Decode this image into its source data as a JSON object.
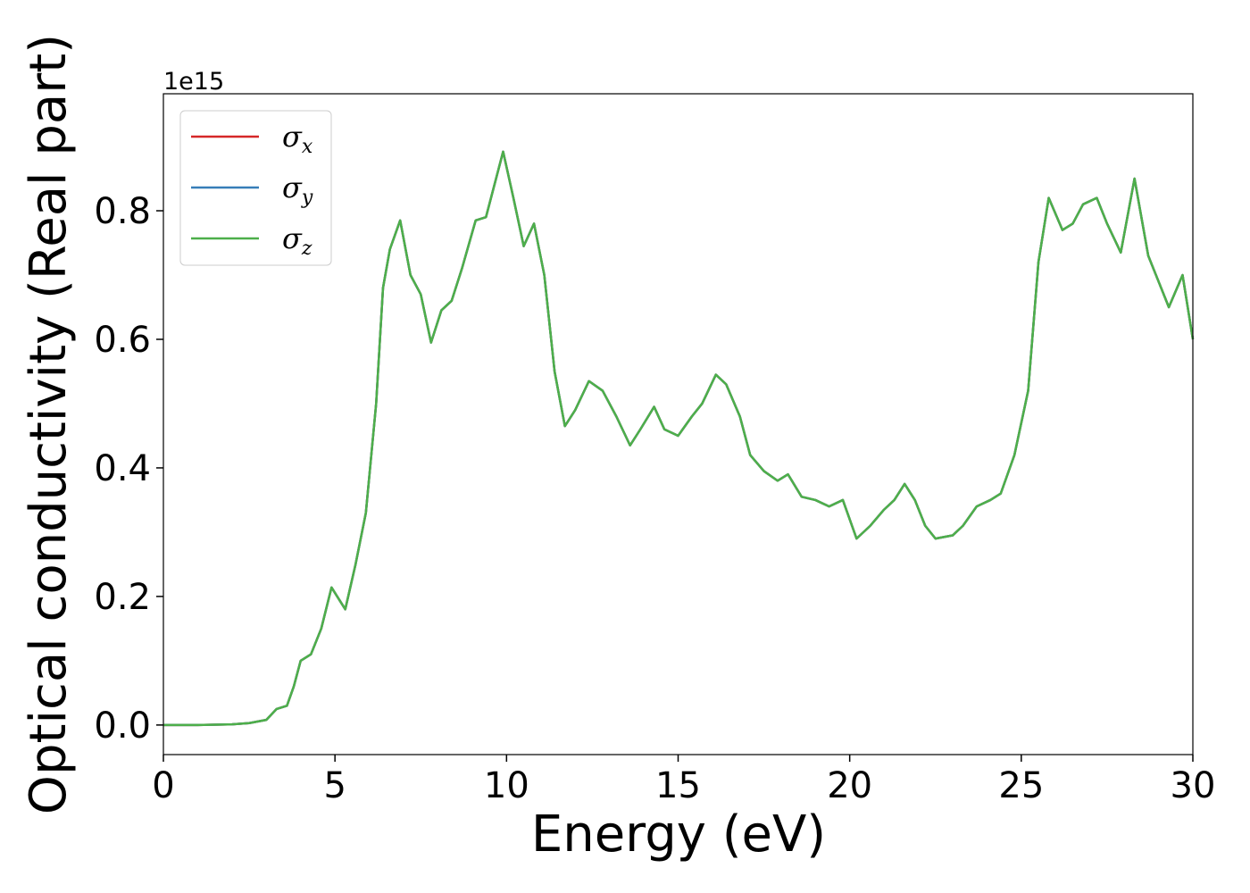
{
  "chart_data": {
    "type": "line",
    "x_label": "Energy (eV)",
    "y_label": "Optical conductivity (Real part)",
    "y_offset_label": "1e15",
    "x": [
      0,
      1,
      2,
      2.5,
      3,
      3.3,
      3.6,
      3.8,
      4.0,
      4.3,
      4.6,
      4.9,
      5.3,
      5.6,
      5.9,
      6.2,
      6.4,
      6.6,
      6.9,
      7.2,
      7.5,
      7.8,
      8.1,
      8.4,
      8.7,
      9.1,
      9.4,
      9.9,
      10.2,
      10.5,
      10.8,
      11.1,
      11.4,
      11.7,
      12.0,
      12.4,
      12.8,
      13.2,
      13.6,
      13.9,
      14.3,
      14.6,
      15.0,
      15.4,
      15.7,
      16.1,
      16.4,
      16.8,
      17.1,
      17.5,
      17.9,
      18.2,
      18.6,
      19.0,
      19.4,
      19.8,
      20.2,
      20.6,
      21.0,
      21.3,
      21.6,
      21.9,
      22.2,
      22.5,
      23.0,
      23.3,
      23.7,
      24.1,
      24.4,
      24.8,
      25.2,
      25.5,
      25.8,
      26.2,
      26.5,
      26.8,
      27.2,
      27.5,
      27.9,
      28.3,
      28.7,
      29.0,
      29.3,
      29.7,
      30.0
    ],
    "series": [
      {
        "name": "σx",
        "color": "#d62728",
        "values": [
          0,
          0,
          0.001,
          0.003,
          0.008,
          0.025,
          0.03,
          0.06,
          0.1,
          0.11,
          0.15,
          0.214,
          0.18,
          0.25,
          0.33,
          0.5,
          0.68,
          0.74,
          0.785,
          0.7,
          0.67,
          0.595,
          0.645,
          0.66,
          0.71,
          0.785,
          0.79,
          0.892,
          0.82,
          0.745,
          0.78,
          0.7,
          0.55,
          0.465,
          0.49,
          0.535,
          0.52,
          0.48,
          0.435,
          0.46,
          0.495,
          0.46,
          0.45,
          0.48,
          0.5,
          0.545,
          0.53,
          0.48,
          0.42,
          0.395,
          0.38,
          0.39,
          0.355,
          0.35,
          0.34,
          0.35,
          0.29,
          0.31,
          0.335,
          0.35,
          0.375,
          0.35,
          0.31,
          0.29,
          0.295,
          0.31,
          0.34,
          0.35,
          0.36,
          0.42,
          0.52,
          0.72,
          0.82,
          0.77,
          0.78,
          0.81,
          0.82,
          0.78,
          0.735,
          0.85,
          0.73,
          0.69,
          0.65,
          0.7,
          0.6
        ]
      },
      {
        "name": "σy",
        "color": "#377eb8",
        "values": [
          0,
          0,
          0.001,
          0.003,
          0.008,
          0.025,
          0.03,
          0.06,
          0.1,
          0.11,
          0.15,
          0.214,
          0.18,
          0.25,
          0.33,
          0.5,
          0.68,
          0.74,
          0.785,
          0.7,
          0.67,
          0.595,
          0.645,
          0.66,
          0.71,
          0.785,
          0.79,
          0.892,
          0.82,
          0.745,
          0.78,
          0.7,
          0.55,
          0.465,
          0.49,
          0.535,
          0.52,
          0.48,
          0.435,
          0.46,
          0.495,
          0.46,
          0.45,
          0.48,
          0.5,
          0.545,
          0.53,
          0.48,
          0.42,
          0.395,
          0.38,
          0.39,
          0.355,
          0.35,
          0.34,
          0.35,
          0.29,
          0.31,
          0.335,
          0.35,
          0.375,
          0.35,
          0.31,
          0.29,
          0.295,
          0.31,
          0.34,
          0.35,
          0.36,
          0.42,
          0.52,
          0.72,
          0.82,
          0.77,
          0.78,
          0.81,
          0.82,
          0.78,
          0.735,
          0.85,
          0.73,
          0.69,
          0.65,
          0.7,
          0.6
        ]
      },
      {
        "name": "σz",
        "color": "#4daf4a",
        "values": [
          0,
          0,
          0.001,
          0.003,
          0.008,
          0.025,
          0.03,
          0.06,
          0.1,
          0.11,
          0.15,
          0.214,
          0.18,
          0.25,
          0.33,
          0.5,
          0.68,
          0.74,
          0.785,
          0.7,
          0.67,
          0.595,
          0.645,
          0.66,
          0.71,
          0.785,
          0.79,
          0.892,
          0.82,
          0.745,
          0.78,
          0.7,
          0.55,
          0.465,
          0.49,
          0.535,
          0.52,
          0.48,
          0.435,
          0.46,
          0.495,
          0.46,
          0.45,
          0.48,
          0.5,
          0.545,
          0.53,
          0.48,
          0.42,
          0.395,
          0.38,
          0.39,
          0.355,
          0.35,
          0.34,
          0.35,
          0.29,
          0.31,
          0.335,
          0.35,
          0.375,
          0.35,
          0.31,
          0.29,
          0.295,
          0.31,
          0.34,
          0.35,
          0.36,
          0.42,
          0.52,
          0.72,
          0.82,
          0.77,
          0.78,
          0.81,
          0.82,
          0.78,
          0.735,
          0.85,
          0.73,
          0.69,
          0.65,
          0.7,
          0.6
        ]
      }
    ],
    "xlim": [
      0,
      30
    ],
    "xticks": [
      0,
      5,
      10,
      15,
      20,
      25,
      30
    ],
    "ylim": [
      -0.046,
      0.982
    ],
    "yticks": [
      {
        "value": 0,
        "label": "0.0"
      },
      {
        "value": 0.2,
        "label": "0.2"
      },
      {
        "value": 0.4,
        "label": "0.4"
      },
      {
        "value": 0.6,
        "label": "0.6"
      },
      {
        "value": 0.8,
        "label": "0.8"
      }
    ],
    "grid": false,
    "legend": "upper left"
  }
}
